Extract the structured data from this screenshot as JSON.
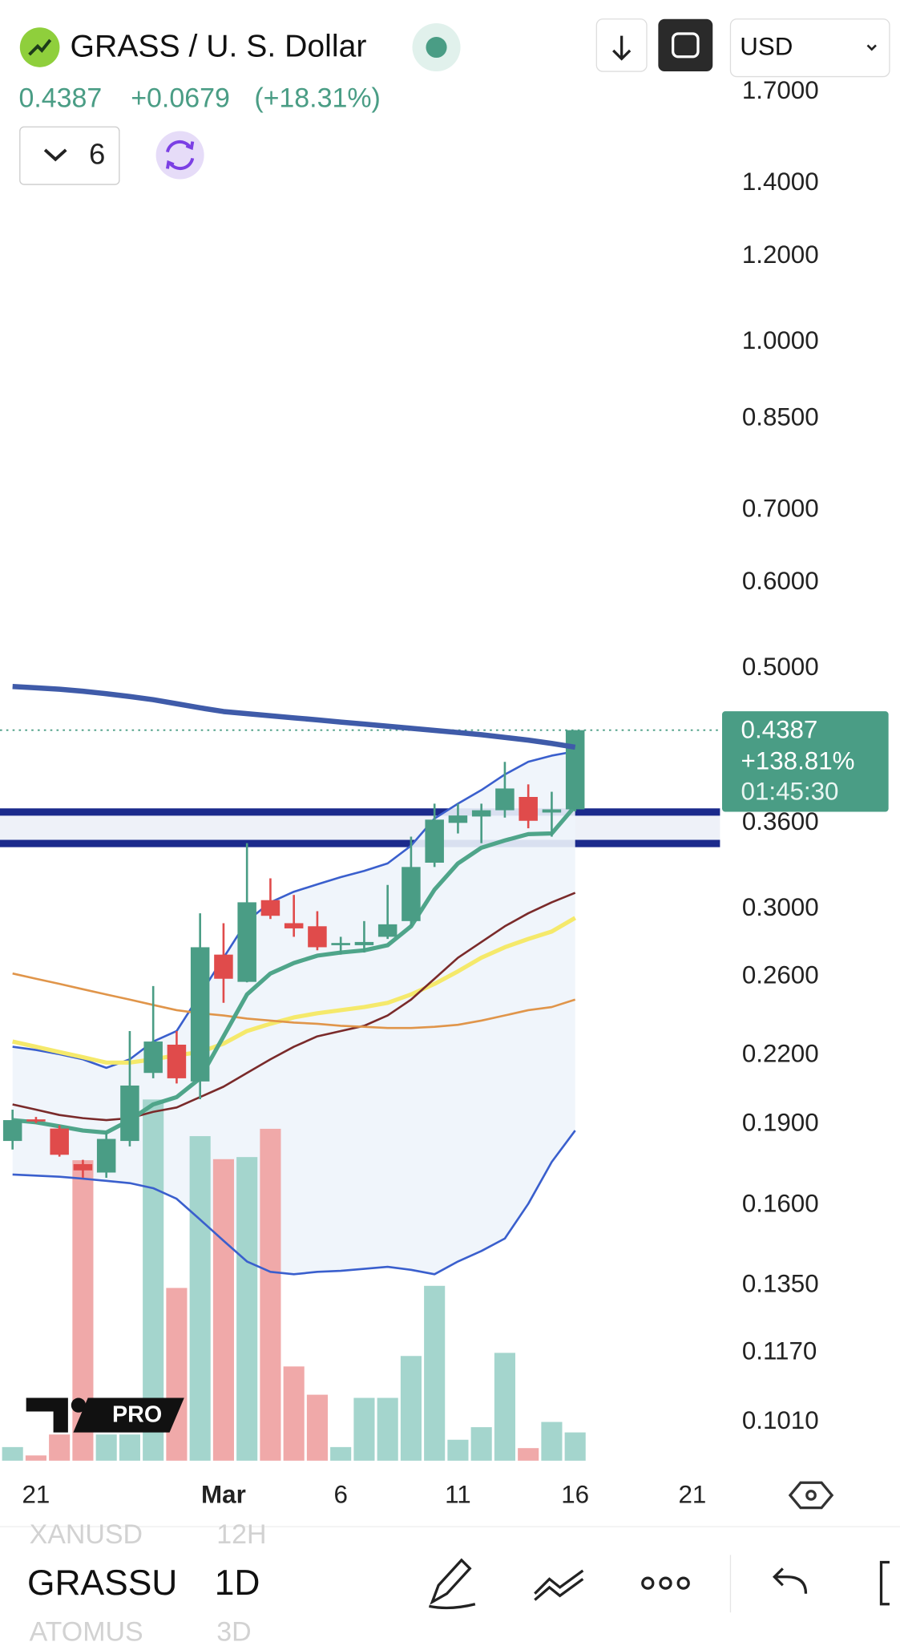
{
  "header": {
    "symbol": "GRASS / U. S. Dollar",
    "change": "+0.0679",
    "change_percent": "(+18.31%)",
    "indicator_count": 6,
    "currency": "USD"
  },
  "price_label": {
    "change_percent": "+138.81%",
    "countdown": "01:45:30"
  },
  "logo": "PRO",
  "toolbar": {
    "symbol": "GRASSU",
    "interval": "1D",
    "prev_symbol": "XANUSD",
    "prev_interval": "12H",
    "next_symbol": "ATOMUS",
    "next_interval": "3D"
  },
  "chart_data": {
    "type": "candlestick",
    "log_scale": true,
    "categories": [
      null,
      "21",
      null,
      null,
      null,
      null,
      null,
      null,
      null,
      "Mar",
      null,
      null,
      null,
      null,
      "6",
      null,
      null,
      null,
      null,
      "11",
      null,
      null,
      null,
      null,
      "16",
      null,
      null,
      null,
      null,
      "21"
    ],
    "open": [
      0.1834,
      0.192,
      0.1883,
      0.1746,
      0.1715,
      0.1834,
      0.2119,
      0.225,
      0.2081,
      0.2724,
      0.2571,
      0.3058,
      0.2912,
      0.2893,
      0.2779,
      0.2779,
      0.2829,
      0.2925,
      0.3311,
      0.3603,
      0.3652,
      0.3701,
      0.3807,
      0.3683,
      0.3708,
      null,
      null,
      null,
      null,
      null
    ],
    "high": [
      0.196,
      0.193,
      0.1896,
      0.1762,
      0.1869,
      0.2316,
      0.2548,
      0.2316,
      0.2974,
      0.2912,
      0.3451,
      0.3203,
      0.3092,
      0.2987,
      0.2829,
      0.2925,
      0.3158,
      0.3499,
      0.3753,
      0.3753,
      0.3753,
      0.4101,
      0.391,
      0.3849,
      0.4387,
      null,
      null,
      null,
      null,
      null
    ],
    "low": [
      0.1801,
      0.1905,
      0.1774,
      0.1696,
      0.1696,
      0.1813,
      0.2095,
      0.2072,
      0.2004,
      0.2459,
      0.2568,
      0.2938,
      0.2829,
      0.2749,
      0.2724,
      0.2736,
      0.2816,
      0.2893,
      0.3281,
      0.3523,
      0.3451,
      0.3644,
      0.3562,
      0.3499,
      0.3692,
      null,
      null,
      null,
      null,
      null
    ],
    "close": [
      0.1917,
      0.1915,
      0.1781,
      0.1723,
      0.1842,
      0.2063,
      0.2265,
      0.2095,
      0.2767,
      0.2588,
      0.3044,
      0.2958,
      0.288,
      0.2767,
      0.2792,
      0.2798,
      0.2905,
      0.3281,
      0.3628,
      0.366,
      0.3701,
      0.3876,
      0.3619,
      0.3708,
      0.4387,
      null,
      null,
      null,
      null,
      null
    ],
    "volume": [
      13,
      5,
      25,
      287,
      25,
      25,
      345,
      165,
      310,
      288,
      290,
      317,
      90,
      63,
      13,
      60,
      60,
      100,
      167,
      20,
      32,
      103,
      12,
      37,
      27,
      null,
      null,
      null,
      null,
      null
    ],
    "volume_lim": [
      0,
      400
    ],
    "up_color": "#4a9d85",
    "down_color": "#e04b4b",
    "up_volume_color": "#a4d5cd",
    "down_volume_color": "#f0a9a9",
    "band_fill": "#eef4fb",
    "indicators": [
      {
        "color": "#3f5ba9",
        "width": 5,
        "values": [
          0.4813,
          0.48,
          0.4785,
          0.4765,
          0.474,
          0.4712,
          0.468,
          0.464,
          0.46,
          0.4564,
          0.4543,
          0.4523,
          0.4503,
          0.4484,
          0.4463,
          0.4444,
          0.4424,
          0.4404,
          0.4385,
          0.4365,
          0.4345,
          0.432,
          0.4295,
          0.4265,
          0.4231,
          null,
          null,
          null,
          null,
          null
        ]
      },
      {
        "color": "#3a5fcd",
        "width": 2,
        "values": [
          0.224,
          0.2225,
          0.2205,
          0.2181,
          0.2142,
          0.2181,
          0.2265,
          0.2316,
          0.2503,
          0.2706,
          0.2925,
          0.3044,
          0.3113,
          0.3162,
          0.3211,
          0.3254,
          0.3306,
          0.3433,
          0.3637,
          0.3753,
          0.3863,
          0.3993,
          0.4102,
          0.4156,
          0.4194,
          null,
          null,
          null,
          null,
          null
        ]
      },
      {
        "color": "#3a5fcd",
        "width": 2,
        "values": [
          0.1708,
          0.1704,
          0.17,
          0.1693,
          0.1685,
          0.1677,
          0.1659,
          0.1622,
          0.1552,
          0.1484,
          0.142,
          0.1389,
          0.1382,
          0.1389,
          0.1392,
          0.1398,
          0.1404,
          0.1395,
          0.1382,
          0.142,
          0.1452,
          0.1491,
          0.1605,
          0.1754,
          0.1875,
          null,
          null,
          null,
          null,
          null
        ]
      },
      {
        "color": "#f5e96b",
        "width": 4,
        "values": [
          0.2265,
          0.224,
          0.2215,
          0.2191,
          0.2166,
          0.2166,
          0.2181,
          0.22,
          0.2215,
          0.2255,
          0.2316,
          0.2352,
          0.2384,
          0.2405,
          0.2421,
          0.2437,
          0.2459,
          0.2503,
          0.256,
          0.2629,
          0.2706,
          0.2767,
          0.2816,
          0.2861,
          0.2945,
          null,
          null,
          null,
          null,
          null
        ]
      },
      {
        "color": "#7a2a2a",
        "width": 2,
        "values": [
          0.1982,
          0.196,
          0.1938,
          0.1925,
          0.1917,
          0.1925,
          0.1951,
          0.1969,
          0.2013,
          0.2058,
          0.2119,
          0.2181,
          0.224,
          0.229,
          0.2316,
          0.2342,
          0.2394,
          0.2476,
          0.2588,
          0.2706,
          0.2798,
          0.2893,
          0.2974,
          0.3044,
          0.3106,
          null,
          null,
          null,
          null,
          null
        ]
      },
      {
        "color": "#e0954a",
        "width": 2,
        "values": [
          0.2617,
          0.2588,
          0.256,
          0.2531,
          0.2503,
          0.2476,
          0.2448,
          0.2421,
          0.2405,
          0.2394,
          0.2378,
          0.2368,
          0.2358,
          0.2352,
          0.2342,
          0.2337,
          0.2331,
          0.2331,
          0.2337,
          0.2347,
          0.2368,
          0.2394,
          0.2421,
          0.2437,
          0.2476,
          null,
          null,
          null,
          null,
          null
        ]
      },
      {
        "color": "#4fa58a",
        "width": 4,
        "values": [
          0.1917,
          0.1908,
          0.1892,
          0.1875,
          0.1867,
          0.1917,
          0.1982,
          0.2013,
          0.2095,
          0.229,
          0.2503,
          0.2617,
          0.2676,
          0.2718,
          0.2736,
          0.2749,
          0.2779,
          0.2893,
          0.3127,
          0.3306,
          0.3418,
          0.3471,
          0.3518,
          0.3523,
          0.3734,
          null,
          null,
          null,
          null,
          null
        ]
      }
    ],
    "band_between": [
      1,
      2
    ],
    "zone": {
      "low": 0.3449,
      "high": 0.3687,
      "color": "#1b2a8c",
      "fill": "#eef1f8"
    },
    "ylim": [
      0.092,
      1.749
    ],
    "yticks": [
      {
        "value": 1.7,
        "label": "1.7000"
      },
      {
        "value": 1.4,
        "label": "1.4000"
      },
      {
        "value": 1.2,
        "label": "1.2000"
      },
      {
        "value": 1.0,
        "label": "1.0000"
      },
      {
        "value": 0.85,
        "label": "0.8500"
      },
      {
        "value": 0.7,
        "label": "0.7000"
      },
      {
        "value": 0.6,
        "label": "0.6000"
      },
      {
        "value": 0.5,
        "label": "0.5000"
      },
      {
        "value": 0.36,
        "label": "0.3600"
      },
      {
        "value": 0.3,
        "label": "0.3000"
      },
      {
        "value": 0.26,
        "label": "0.2600"
      },
      {
        "value": 0.22,
        "label": "0.2200"
      },
      {
        "value": 0.19,
        "label": "0.1900"
      },
      {
        "value": 0.16,
        "label": "0.1600"
      },
      {
        "value": 0.135,
        "label": "0.1350"
      },
      {
        "value": 0.117,
        "label": "0.1170"
      },
      {
        "value": 0.101,
        "label": "0.1010"
      }
    ]
  }
}
